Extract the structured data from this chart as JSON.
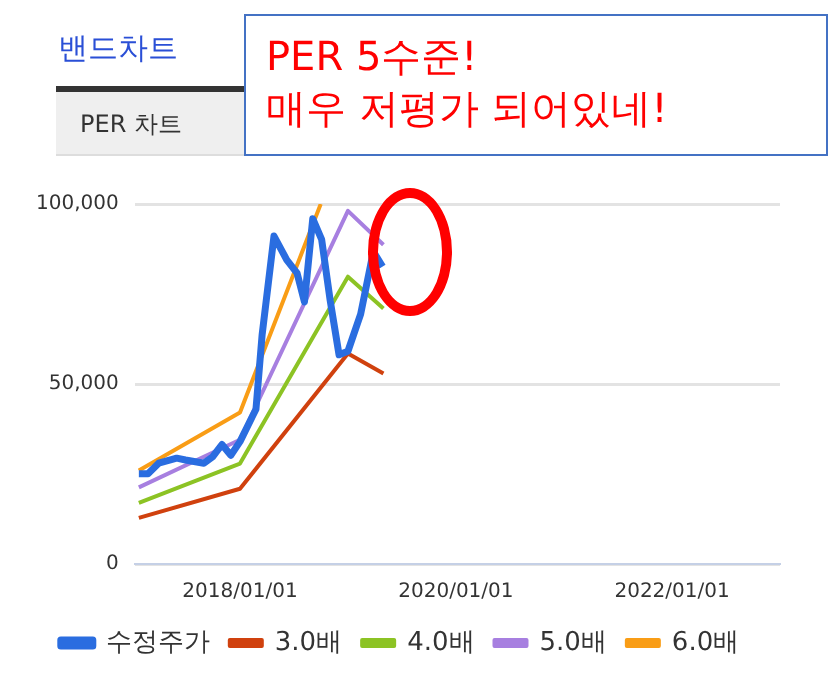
{
  "chart_data": {
    "type": "line",
    "title": "밴드차트",
    "subtitle": "PER 차트",
    "annotations": [
      "PER 5수준!\n매우 저평가 되어있네!"
    ],
    "xlim": [
      "2017-01-10",
      "2023-01-01"
    ],
    "xticks": [
      {
        "value": "2018-01-01",
        "label": "2018/01/01"
      },
      {
        "value": "2020-01-01",
        "label": "2020/01/01"
      },
      {
        "value": "2022-01-01",
        "label": "2022/01/01"
      }
    ],
    "ylim": [
      0,
      100000
    ],
    "yticks": [
      {
        "value": 0,
        "label": "0"
      },
      {
        "value": 50000,
        "label": "50,000"
      },
      {
        "value": 100000,
        "label": "100,000"
      }
    ],
    "grid": "y",
    "legend": "bottom",
    "marker": "none",
    "line_style": "solid",
    "series": [
      {
        "name": "수정주가",
        "color": "#2a6de0",
        "x": [
          "2017-01-24",
          "2017-02-24",
          "2017-04-01",
          "2017-06-01",
          "2017-07-01",
          "2017-09-01",
          "2017-10-01",
          "2017-11-01",
          "2017-12-01",
          "2018-01-01",
          "2018-02-24",
          "2018-03-17",
          "2018-04-26",
          "2018-06-08",
          "2018-07-13",
          "2018-08-07",
          "2018-09-04",
          "2018-10-04",
          "2018-11-02",
          "2018-12-02",
          "2019-01-01",
          "2019-02-13",
          "2019-03-28",
          "2019-04-28"
        ],
        "values": [
          25100,
          25100,
          28000,
          29400,
          28900,
          28000,
          29800,
          33200,
          30200,
          34000,
          43000,
          63800,
          91100,
          84500,
          80800,
          72800,
          95900,
          90200,
          73200,
          58100,
          59100,
          69400,
          86800,
          82600
        ]
      },
      {
        "name": "3.0배",
        "color": "#d0410e",
        "x": [
          "2017-01-24",
          "2018-01-01",
          "2019-01-01",
          "2019-05-01"
        ],
        "values": [
          12800,
          20900,
          58500,
          52900
        ]
      },
      {
        "name": "4.0배",
        "color": "#8cc324",
        "x": [
          "2017-01-24",
          "2018-01-01",
          "2019-01-01",
          "2019-05-01"
        ],
        "values": [
          17000,
          27900,
          79800,
          71000
        ]
      },
      {
        "name": "5.0배",
        "color": "#a77fe0",
        "x": [
          "2017-01-24",
          "2018-01-01",
          "2019-01-01",
          "2019-05-01"
        ],
        "values": [
          21300,
          34500,
          98100,
          88700
        ]
      },
      {
        "name": "6.0배",
        "color": "#f99d16",
        "x": [
          "2017-01-24",
          "2018-01-01",
          "2018-10-01"
        ],
        "values": [
          26000,
          42100,
          100000
        ]
      }
    ]
  }
}
